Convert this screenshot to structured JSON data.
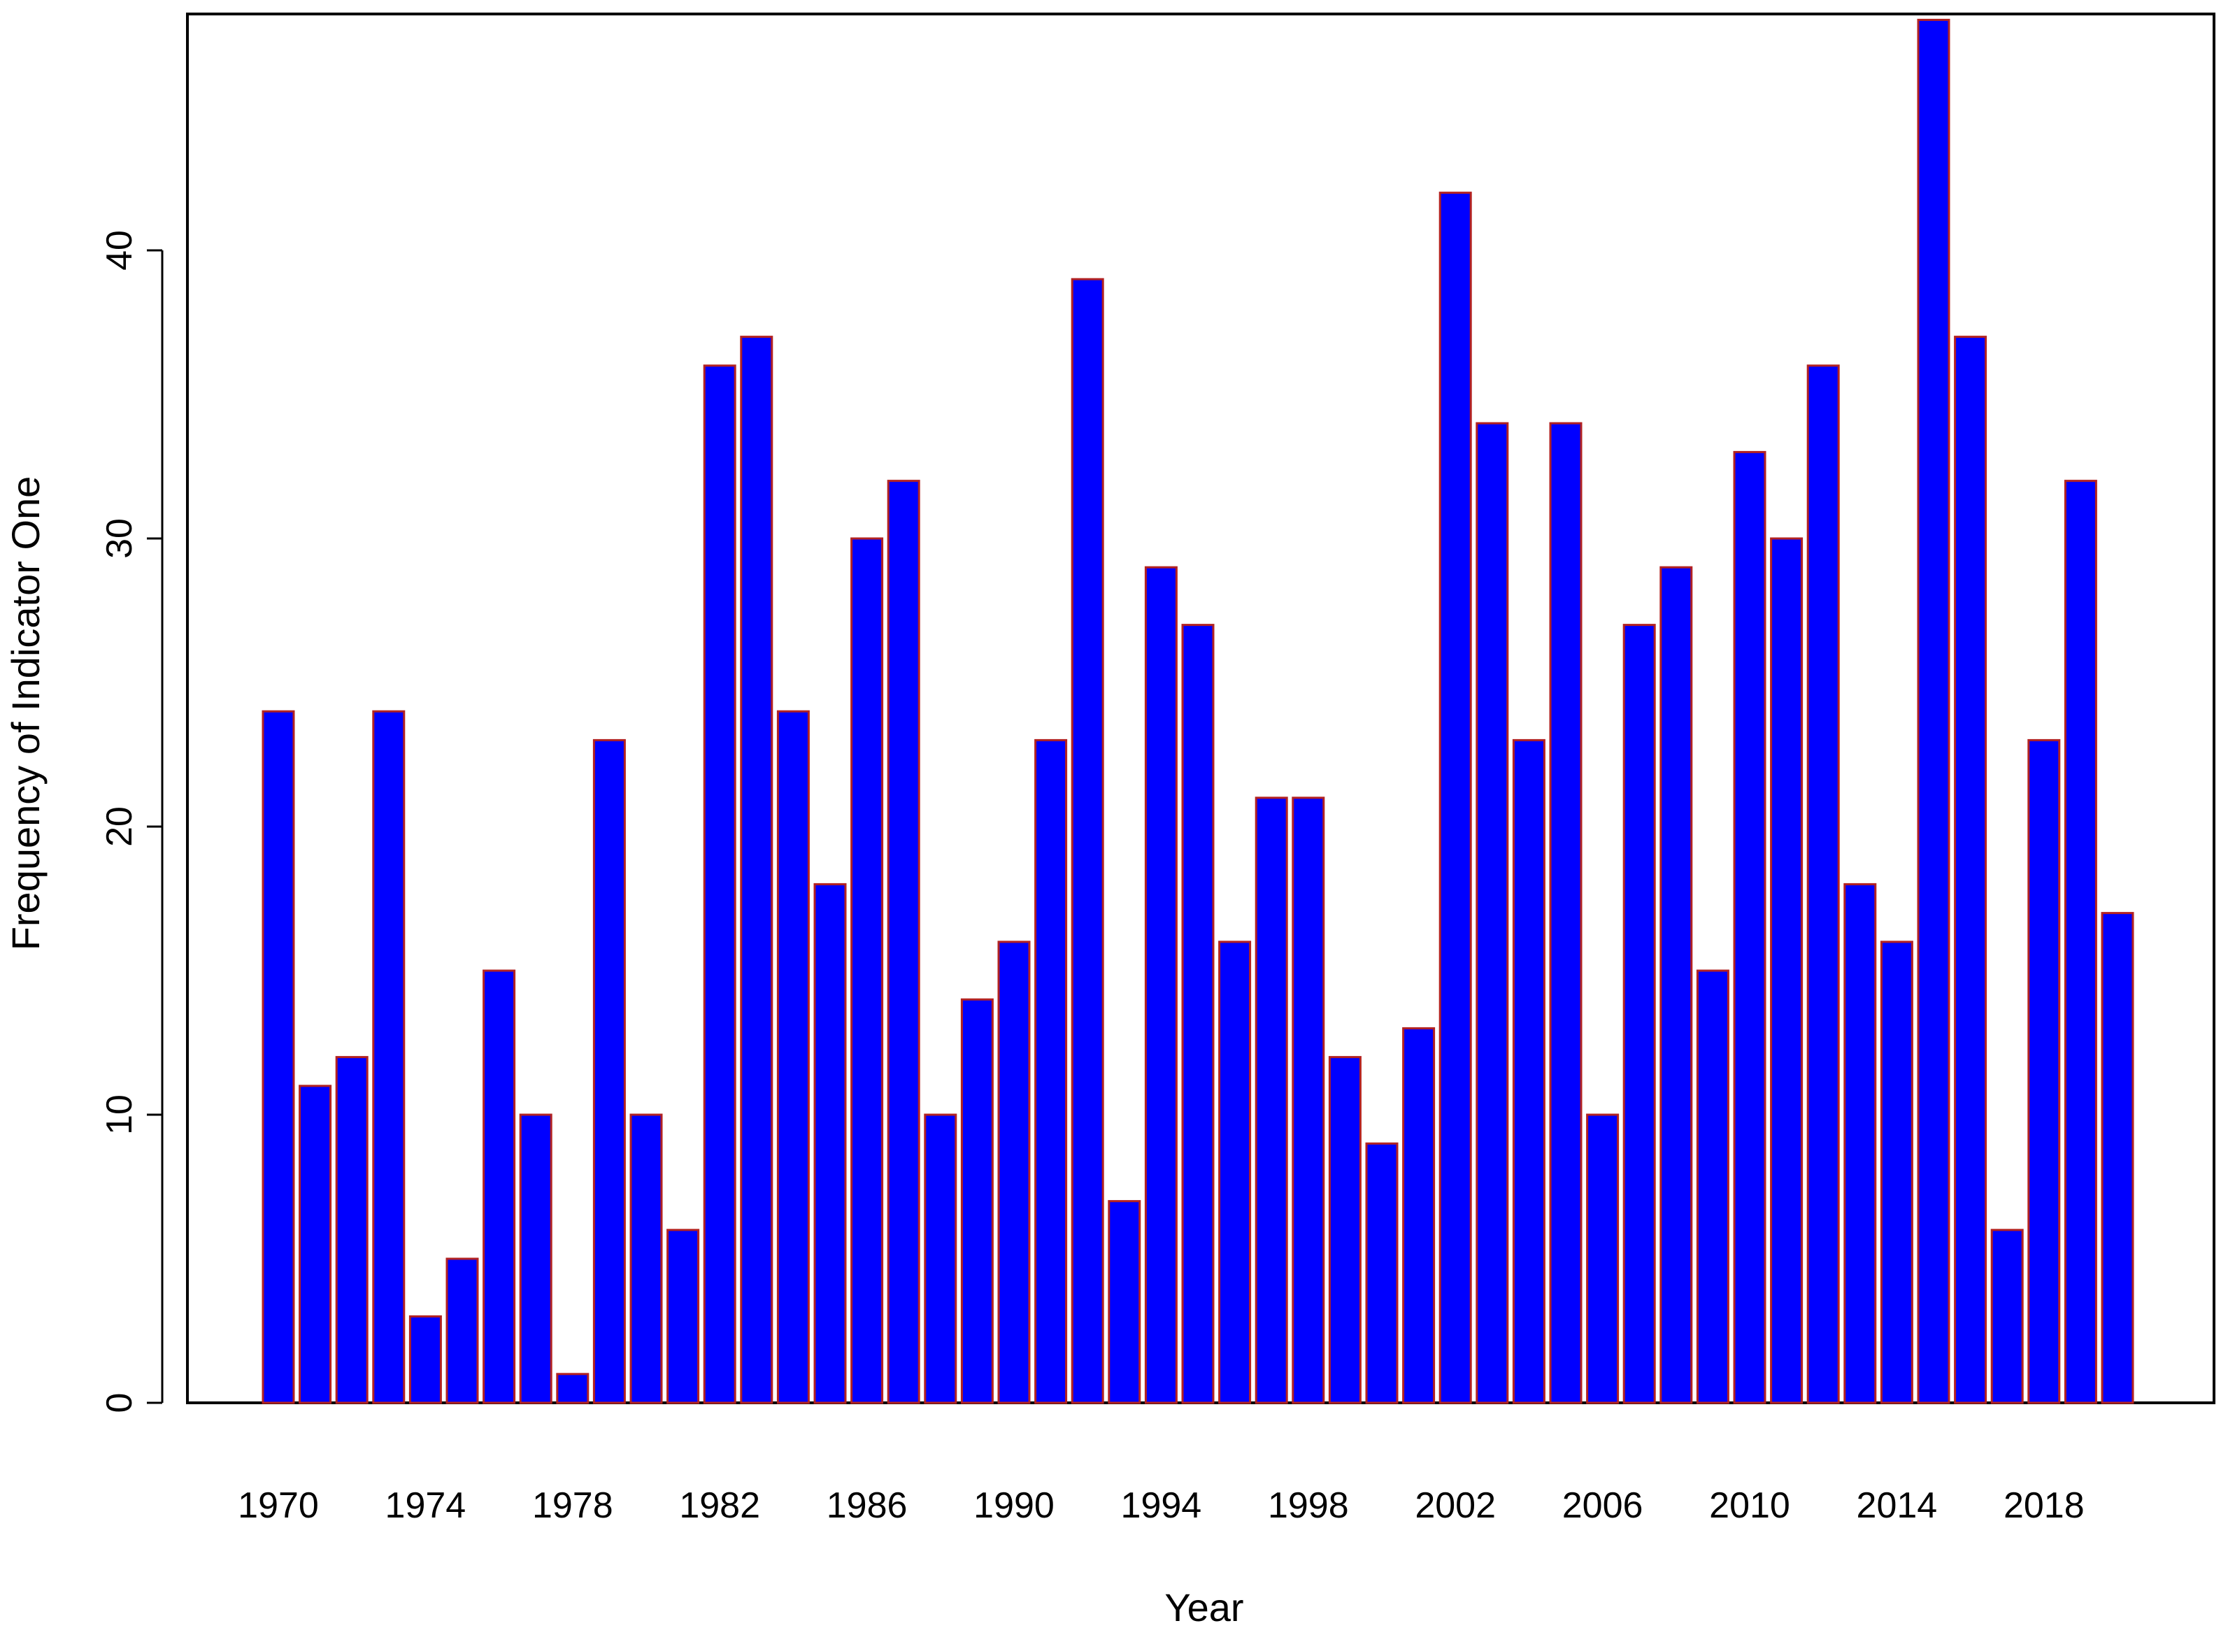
{
  "chart_data": {
    "type": "bar",
    "title": "",
    "xlabel": "Year",
    "ylabel": "Frequency of Indicator One",
    "ylim": [
      0,
      48
    ],
    "y_ticks": [
      "0",
      "10",
      "20",
      "30",
      "40"
    ],
    "x_tick_labels": [
      "1970",
      "1974",
      "1978",
      "1982",
      "1986",
      "1990",
      "1994",
      "1998",
      "2002",
      "2006",
      "2010",
      "2014",
      "2018"
    ],
    "categories": [
      "1970",
      "1971",
      "1972",
      "1973",
      "1974",
      "1975",
      "1976",
      "1977",
      "1978",
      "1979",
      "1980",
      "1981",
      "1982",
      "1983",
      "1984",
      "1985",
      "1986",
      "1987",
      "1988",
      "1989",
      "1990",
      "1991",
      "1992",
      "1993",
      "1994",
      "1995",
      "1996",
      "1997",
      "1998",
      "1999",
      "2000",
      "2001",
      "2002",
      "2003",
      "2004",
      "2005",
      "2006",
      "2007",
      "2008",
      "2009",
      "2010",
      "2011",
      "2012",
      "2013",
      "2014",
      "2015",
      "2016",
      "2017",
      "2018",
      "2019",
      "2020"
    ],
    "values": [
      24,
      11,
      12,
      24,
      3,
      5,
      15,
      10,
      1,
      23,
      10,
      6,
      36,
      37,
      24,
      18,
      30,
      32,
      10,
      14,
      16,
      23,
      39,
      7,
      29,
      27,
      16,
      21,
      21,
      12,
      9,
      13,
      42,
      34,
      23,
      34,
      10,
      27,
      29,
      15,
      33,
      30,
      36,
      18,
      16,
      48,
      37,
      6,
      23,
      32,
      17
    ],
    "bar_fill": "#0000ff",
    "bar_border": "#b22222",
    "grid": false,
    "legend": "none"
  }
}
